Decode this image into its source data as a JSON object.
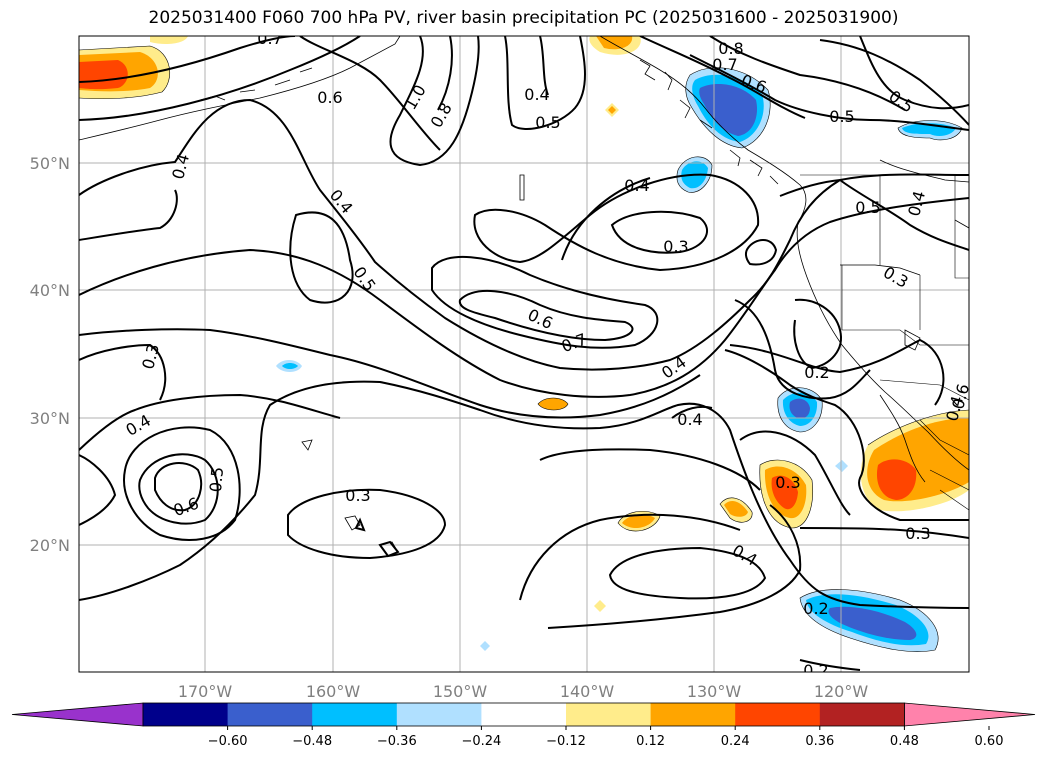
{
  "title": "2025031400 F060 700 hPa PV, river basin precipitation PC (2025031600 - 2025031900)",
  "map": {
    "lon_labels": [
      "170°W",
      "160°W",
      "150°W",
      "140°W",
      "130°W",
      "120°W"
    ],
    "lat_labels": [
      "50°N",
      "40°N",
      "30°N",
      "20°N"
    ]
  },
  "colorbar": {
    "colors": [
      "#9932cc",
      "#00008b",
      "#3a5fcd",
      "#00bfff",
      "#b0e0ff",
      "#ffffff",
      "#ffec8b",
      "#ffa500",
      "#ff4500",
      "#b22222",
      "#ff82ab"
    ],
    "ticks": [
      "−0.60",
      "−0.48",
      "−0.36",
      "−0.24",
      "−0.12",
      "0.12",
      "0.24",
      "0.36",
      "0.48",
      "0.60"
    ]
  },
  "contour_labels": [
    "0.7",
    "0.6",
    "1.0",
    "0.8",
    "0.4",
    "0.5",
    "0.8",
    "0.7",
    "0.6",
    "0.5",
    "0.5",
    "0.4",
    "0.4",
    "0.4",
    "0.5",
    "0.4",
    "0.3",
    "0.5",
    "0.6",
    "0.7",
    "0.3",
    "0.4",
    "0.3",
    "0.2",
    "0.4",
    "0.4",
    "0.6",
    "0.5",
    "0.3",
    "0.3",
    "0.4",
    "0.3",
    "0.2",
    "0.2",
    "0.4",
    "0.6"
  ]
}
